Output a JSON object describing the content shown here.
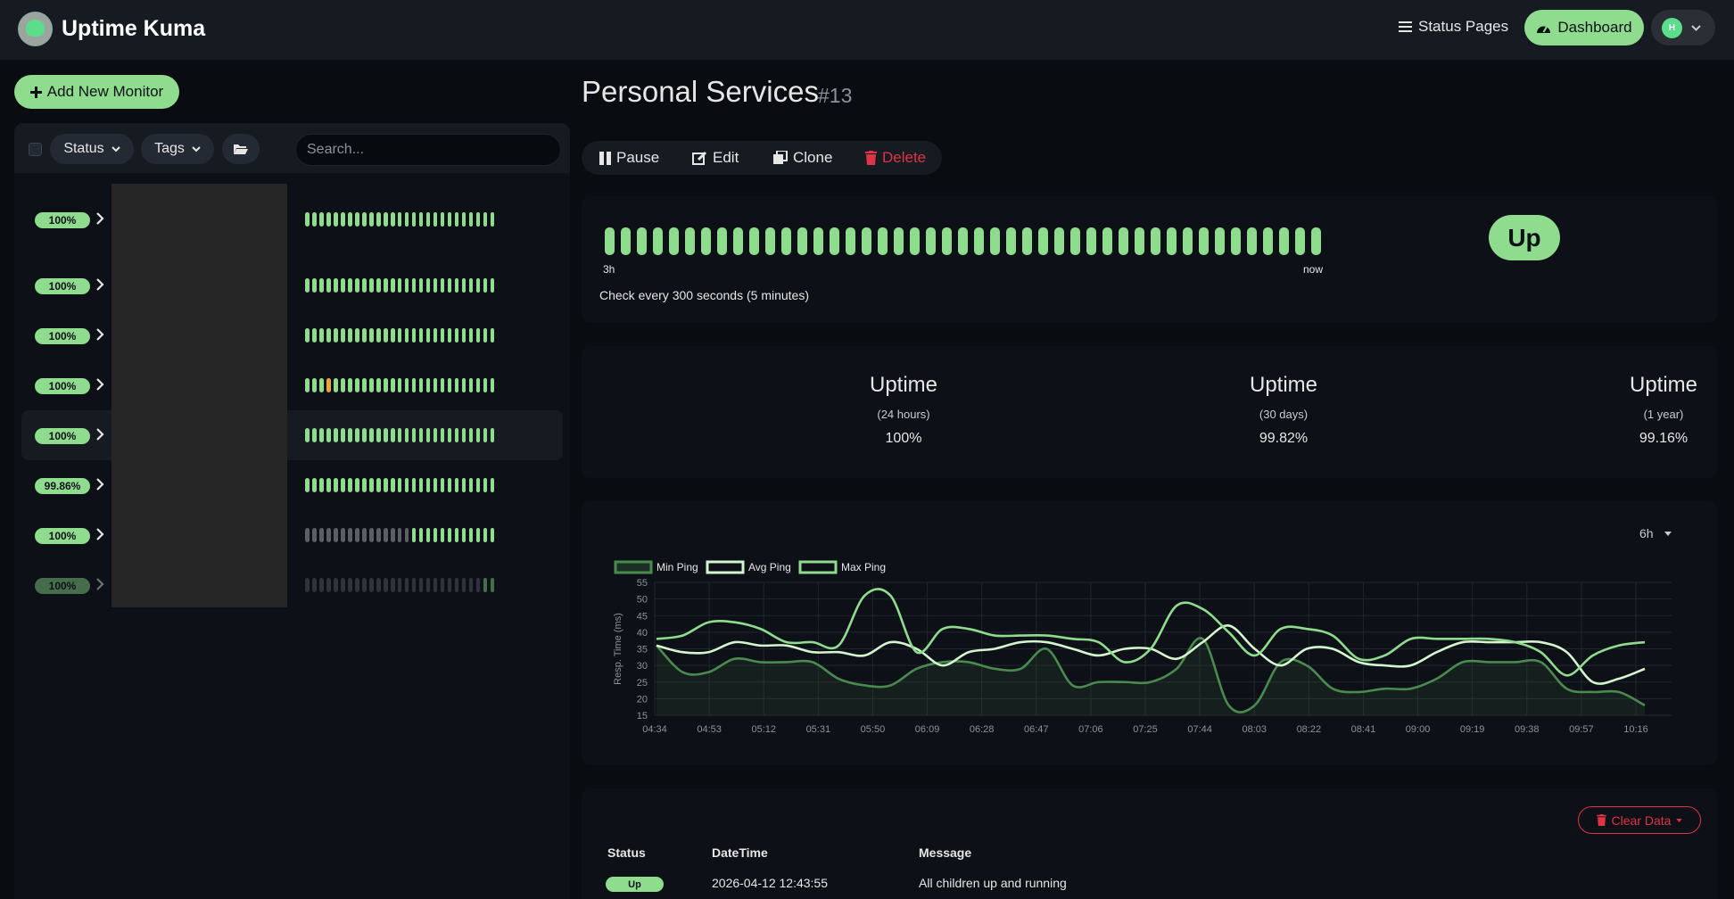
{
  "header": {
    "app_name": "Uptime Kuma",
    "nav": {
      "status_pages": "Status Pages",
      "dashboard": "Dashboard"
    },
    "profile": {
      "initial": "H"
    }
  },
  "sidebar": {
    "add_button": "Add New Monitor",
    "filters": {
      "status": "Status",
      "tags": "Tags"
    },
    "search_placeholder": "Search...",
    "monitors": [
      {
        "uptime": "100%",
        "state": "up"
      },
      {
        "uptime": "100%",
        "state": "up"
      },
      {
        "uptime": "100%",
        "state": "up"
      },
      {
        "uptime": "100%",
        "state": "up"
      },
      {
        "uptime": "100%",
        "state": "up",
        "active": true
      },
      {
        "uptime": "99.86%",
        "state": "up"
      },
      {
        "uptime": "100%",
        "state": "up"
      },
      {
        "uptime": "100%",
        "state": "up"
      }
    ]
  },
  "monitor": {
    "name": "Personal Services",
    "id": "#13",
    "actions": {
      "pause": "Pause",
      "edit": "Edit",
      "clone": "Clone",
      "delete": "Delete"
    },
    "heartbeat": {
      "start_label": "3h",
      "end_label": "now",
      "count": 45
    },
    "check_text": "Check every 300 seconds (5 minutes)",
    "status": "Up",
    "colors": {
      "up": "#8fdc8e",
      "danger": "#dc3545",
      "warning": "#e7a53d"
    }
  },
  "uptime": [
    {
      "title": "Uptime",
      "period": "(24 hours)",
      "value": "100%"
    },
    {
      "title": "Uptime",
      "period": "(30 days)",
      "value": "99.82%"
    },
    {
      "title": "Uptime",
      "period": "(1 year)",
      "value": "99.16%"
    }
  ],
  "chart_data": {
    "type": "line",
    "range_selector": "6h",
    "ylabel": "Resp. Time (ms)",
    "ylim": [
      15,
      55
    ],
    "yticks": [
      55,
      50,
      45,
      40,
      35,
      30,
      25,
      20,
      15
    ],
    "xticks": [
      "04:34",
      "04:53",
      "05:12",
      "05:31",
      "05:50",
      "06:09",
      "06:28",
      "06:47",
      "07:06",
      "07:25",
      "07:44",
      "08:03",
      "08:22",
      "08:41",
      "09:00",
      "09:19",
      "09:38",
      "09:57",
      "10:16"
    ],
    "legend_position": "top-left",
    "series": [
      {
        "name": "Min Ping",
        "color": "#4a8a4f",
        "fill": true,
        "values": [
          36,
          28,
          28,
          32,
          31,
          31,
          31,
          26,
          24,
          24,
          29,
          31,
          31,
          29,
          29,
          35,
          24,
          25,
          25,
          25,
          29,
          38,
          18,
          18,
          31,
          30,
          23,
          22,
          23,
          23,
          26,
          31,
          31,
          31,
          31,
          23,
          22,
          22,
          18
        ]
      },
      {
        "name": "Avg Ping",
        "color": "#d4f5cf",
        "fill": false,
        "values": [
          36,
          34,
          34,
          37,
          36,
          36,
          34,
          34,
          33,
          37,
          35,
          30,
          34,
          35,
          37,
          37,
          35,
          33,
          35,
          35,
          32,
          37,
          42,
          35,
          30,
          35,
          35,
          31,
          30,
          30,
          34,
          37,
          37,
          37,
          37,
          34,
          25,
          26,
          29
        ]
      },
      {
        "name": "Max Ping",
        "color": "#8fdc8e",
        "fill": false,
        "values": [
          38,
          39,
          43,
          43,
          41,
          37,
          37,
          36,
          51,
          51,
          34,
          41,
          41,
          39,
          39,
          39,
          38,
          37,
          31,
          35,
          48,
          47,
          40,
          33,
          41,
          41,
          39,
          32,
          33,
          38,
          38,
          38,
          38,
          37,
          34,
          27,
          33,
          36,
          37
        ]
      }
    ]
  },
  "events": {
    "clear_button": "Clear Data",
    "columns": [
      "Status",
      "DateTime",
      "Message"
    ],
    "rows": [
      {
        "status": "Up",
        "datetime": "2026-04-12 12:43:55",
        "message": "All children up and running"
      }
    ]
  }
}
